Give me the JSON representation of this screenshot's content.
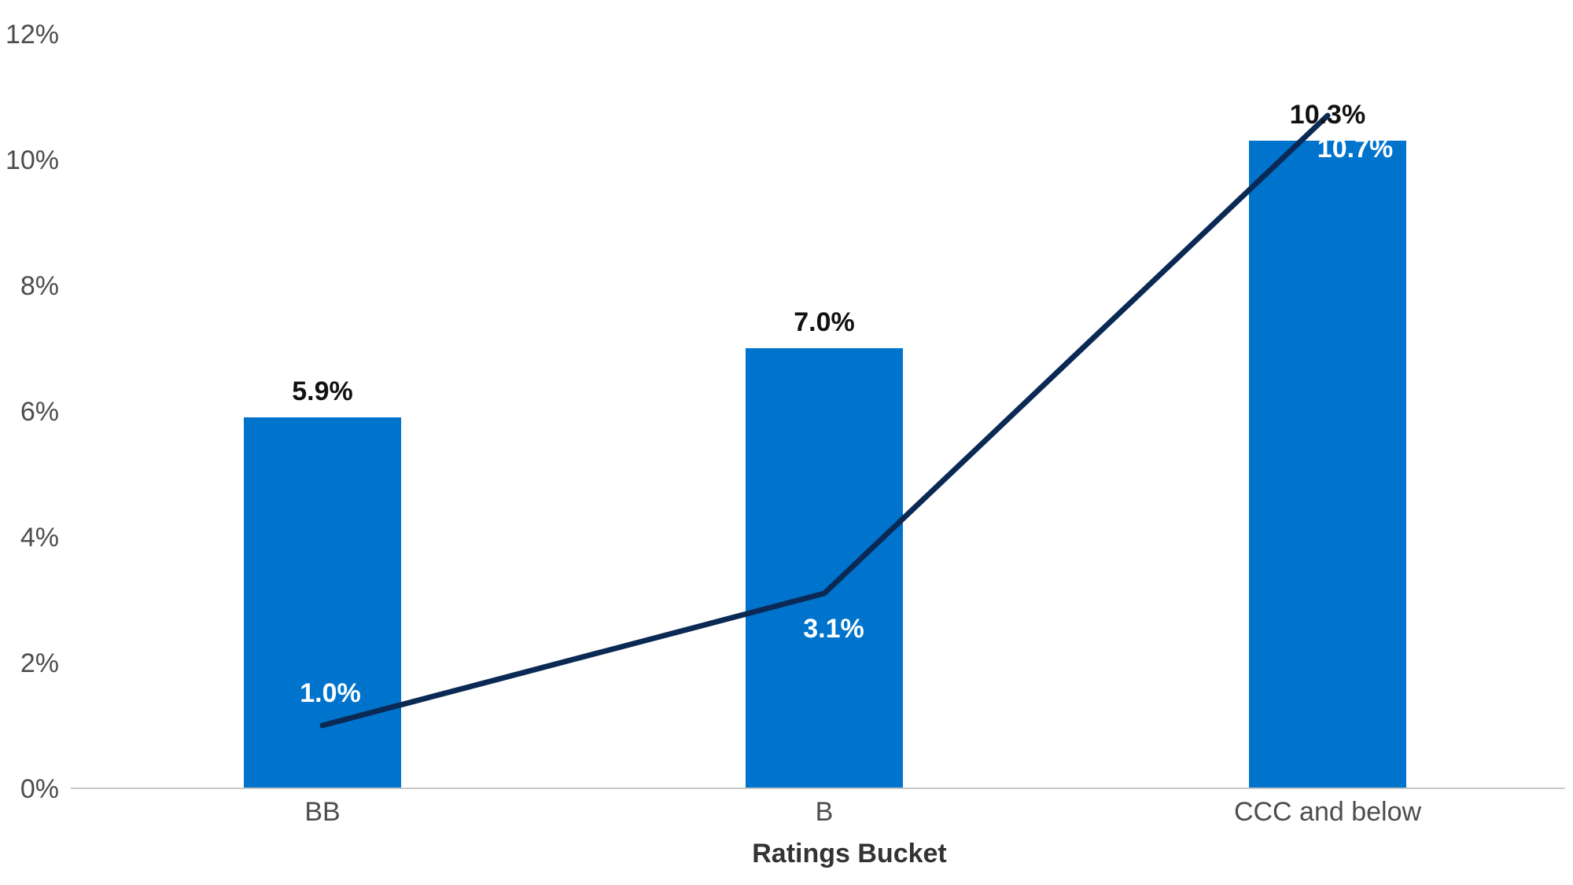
{
  "chart_data": {
    "type": "bar",
    "categories": [
      "BB",
      "B",
      "CCC and below"
    ],
    "series": [
      {
        "type": "bar",
        "values": [
          5.9,
          7.0,
          10.3
        ],
        "labels": [
          "5.9%",
          "7.0%",
          "10.3%"
        ],
        "color": "#0074CC"
      },
      {
        "type": "line",
        "values": [
          1.0,
          3.1,
          10.7
        ],
        "labels": [
          "1.0%",
          "3.1%",
          "10.7%"
        ],
        "color": "#0A2A55"
      }
    ],
    "xlabel": "Ratings Bucket",
    "ylabel": "",
    "ylim": [
      0,
      12
    ],
    "yticks": [
      0,
      2,
      4,
      6,
      8,
      10,
      12
    ],
    "ytick_labels": [
      "0%",
      "2%",
      "4%",
      "6%",
      "8%",
      "10%",
      "12%"
    ],
    "grid": false,
    "legend": "none"
  }
}
